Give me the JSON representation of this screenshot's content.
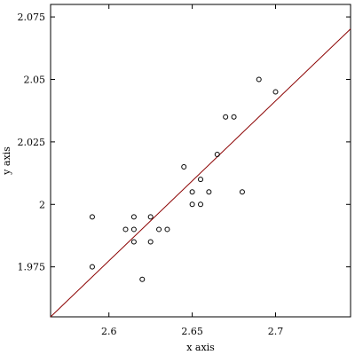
{
  "chart_data": {
    "type": "scatter",
    "x_label": "x axis",
    "y_label": "y axis",
    "xlim": [
      2.565,
      2.745
    ],
    "ylim": [
      1.955,
      2.08
    ],
    "xticks": [
      2.6,
      2.65,
      2.7
    ],
    "yticks": [
      1.975,
      2,
      2.025,
      2.05,
      2.075
    ],
    "points": {
      "color": "#000000",
      "x": [
        2.59,
        2.59,
        2.61,
        2.615,
        2.615,
        2.615,
        2.62,
        2.625,
        2.625,
        2.63,
        2.635,
        2.645,
        2.65,
        2.65,
        2.655,
        2.655,
        2.66,
        2.665,
        2.67,
        2.675,
        2.68,
        2.69,
        2.7
      ],
      "y": [
        1.995,
        1.975,
        1.99,
        1.995,
        1.99,
        1.985,
        1.97,
        1.995,
        1.985,
        1.99,
        1.99,
        2.015,
        2.005,
        2,
        2.01,
        2,
        2.005,
        2.02,
        2.035,
        2.035,
        2.005,
        2.05,
        2.045
      ]
    },
    "fit_line": {
      "color": "#8b0000",
      "x": [
        2.565,
        2.745
      ],
      "y": [
        1.955,
        2.0702
      ]
    }
  }
}
